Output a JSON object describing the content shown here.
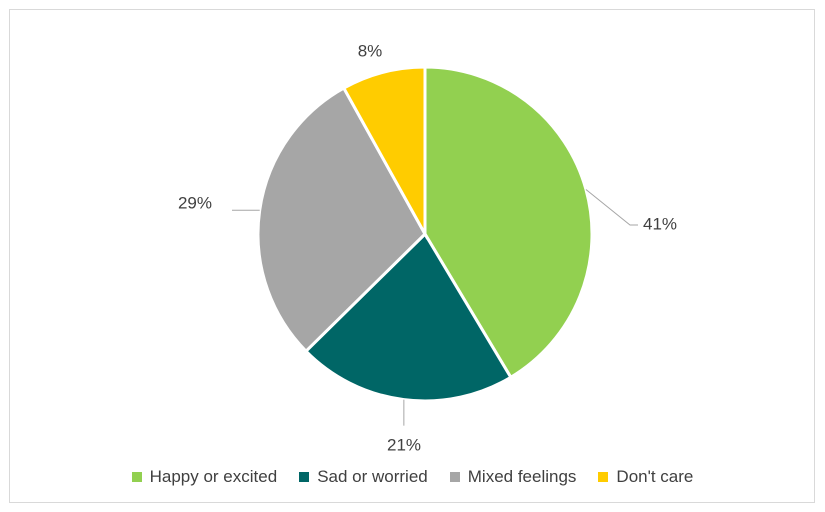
{
  "chart_data": {
    "type": "pie",
    "categories": [
      "Happy or excited",
      "Sad or worried",
      "Mixed feelings",
      "Don't care"
    ],
    "values": [
      41,
      21,
      29,
      8
    ],
    "labels": [
      "41%",
      "21%",
      "29%",
      "8%"
    ],
    "colors": [
      "#92d050",
      "#006666",
      "#a6a6a6",
      "#ffcc00"
    ],
    "legend_position": "bottom",
    "title": ""
  }
}
